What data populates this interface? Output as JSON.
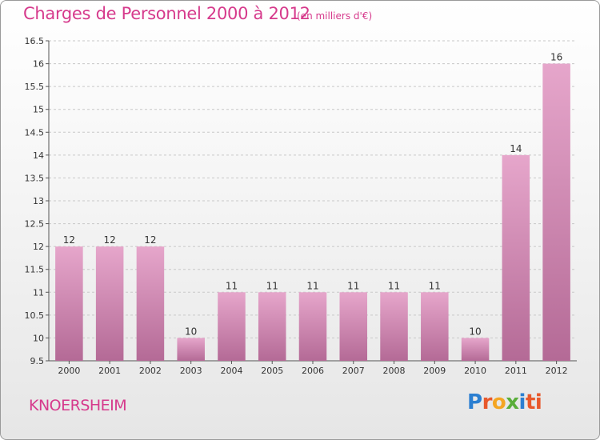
{
  "title": "Charges de Personnel 2000 à 2012",
  "subtitle": "(en milliers d'€)",
  "commune": "KNOERSHEIM",
  "logo": [
    "P",
    "r",
    "o",
    "x",
    "i",
    "ti"
  ],
  "colors": {
    "accent": "#d63a8c",
    "bar_top": "#e6a6cb",
    "bar_bottom": "#b46a96"
  },
  "chart_data": {
    "type": "bar",
    "categories": [
      "2000",
      "2001",
      "2002",
      "2003",
      "2004",
      "2005",
      "2006",
      "2007",
      "2008",
      "2009",
      "2010",
      "2011",
      "2012"
    ],
    "values": [
      12,
      12,
      12,
      10,
      11,
      11,
      11,
      11,
      11,
      11,
      10,
      14,
      16
    ],
    "value_labels": [
      "12",
      "12",
      "12",
      "10",
      "11",
      "11",
      "11",
      "11",
      "11",
      "11",
      "10",
      "14",
      "16"
    ],
    "ylim": [
      9.5,
      16.5
    ],
    "yticks": [
      9.5,
      10,
      10.5,
      11,
      11.5,
      12,
      12.5,
      13,
      13.5,
      14,
      14.5,
      15,
      15.5,
      16,
      16.5
    ],
    "ytick_labels": [
      "9.5",
      "10",
      "10.5",
      "11",
      "11.5",
      "12",
      "12.5",
      "13",
      "13.5",
      "14",
      "14.5",
      "15",
      "15.5",
      "16",
      "16.5"
    ],
    "grid": "horizontal dashed",
    "legend": "none"
  }
}
